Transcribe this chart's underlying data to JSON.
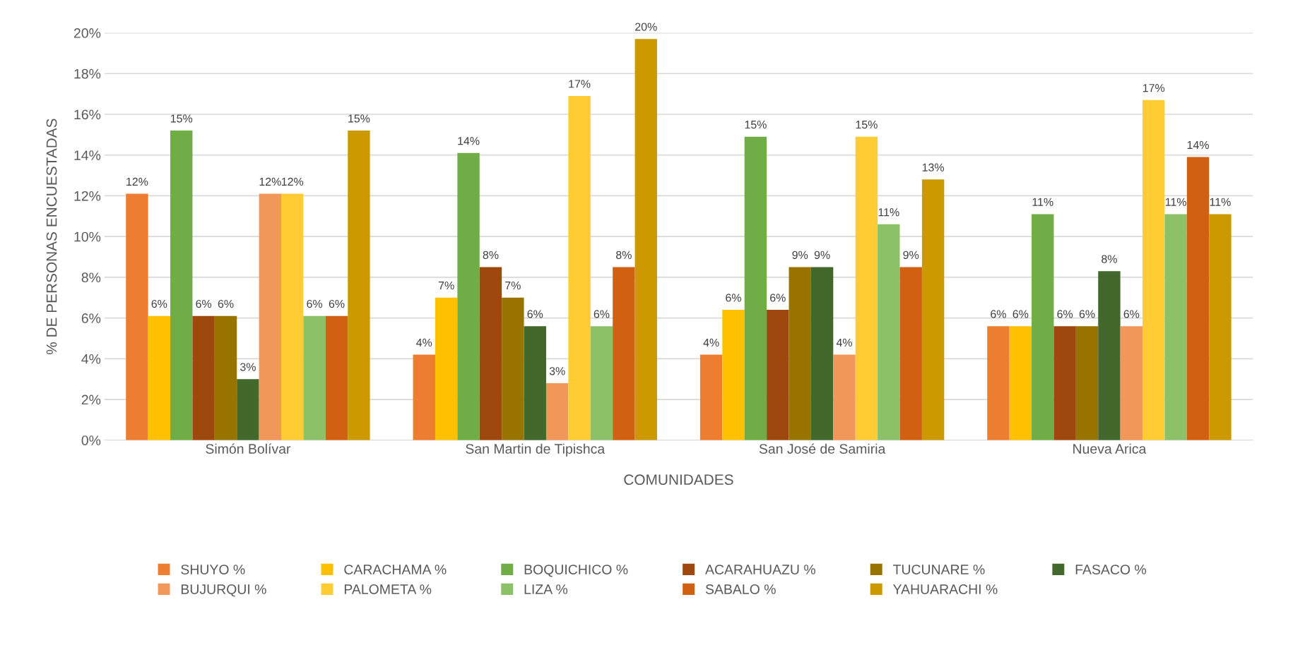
{
  "chart_data": {
    "type": "bar",
    "xlabel": "COMUNIDADES",
    "ylabel": "% DE PERSONAS ENCUESTADAS",
    "categories": [
      "Simón Bolívar",
      "San Martin de Tipishca",
      "San José de Samiria",
      "Nueva Arica"
    ],
    "series": [
      {
        "name": "SHUYO %",
        "color": "#ed7d31",
        "values": [
          12.1,
          4.2,
          4.2,
          5.6
        ],
        "value_labels": [
          "12%",
          "4%",
          "4%",
          "6%"
        ]
      },
      {
        "name": "CARACHAMA %",
        "color": "#ffc000",
        "values": [
          6.1,
          7.0,
          6.4,
          5.6
        ],
        "value_labels": [
          "6%",
          "7%",
          "6%",
          "6%"
        ]
      },
      {
        "name": "BOQUICHICO %",
        "color": "#70ad47",
        "values": [
          15.2,
          14.1,
          14.9,
          11.1
        ],
        "value_labels": [
          "15%",
          "14%",
          "15%",
          "11%"
        ]
      },
      {
        "name": "ACARAHUAZU %",
        "color": "#9e480e",
        "values": [
          6.1,
          8.5,
          6.4,
          5.6
        ],
        "value_labels": [
          "6%",
          "8%",
          "6%",
          "6%"
        ]
      },
      {
        "name": "TUCUNARE %",
        "color": "#997300",
        "values": [
          6.1,
          7.0,
          8.5,
          5.6
        ],
        "value_labels": [
          "6%",
          "7%",
          "9%",
          "6%"
        ]
      },
      {
        "name": "FASACO %",
        "color": "#43682b",
        "values": [
          3.0,
          5.6,
          8.5,
          8.3
        ],
        "value_labels": [
          "3%",
          "6%",
          "9%",
          "8%"
        ]
      },
      {
        "name": "BUJURQUI %",
        "color": "#f1975a",
        "values": [
          12.1,
          2.8,
          4.2,
          5.6
        ],
        "value_labels": [
          "12%",
          "3%",
          "4%",
          "6%"
        ]
      },
      {
        "name": "PALOMETA %",
        "color": "#ffcd33",
        "values": [
          12.1,
          16.9,
          14.9,
          16.7
        ],
        "value_labels": [
          "12%",
          "17%",
          "15%",
          "17%"
        ]
      },
      {
        "name": "LIZA %",
        "color": "#8cc168",
        "values": [
          6.1,
          5.6,
          10.6,
          11.1
        ],
        "value_labels": [
          "6%",
          "6%",
          "11%",
          "11%"
        ]
      },
      {
        "name": "SABALO %",
        "color": "#d26012",
        "values": [
          6.1,
          8.5,
          8.5,
          13.9
        ],
        "value_labels": [
          "6%",
          "8%",
          "9%",
          "14%"
        ]
      },
      {
        "name": "YAHUARACHI %",
        "color": "#cc9a00",
        "values": [
          15.2,
          19.7,
          12.8,
          11.1
        ],
        "value_labels": [
          "15%",
          "20%",
          "13%",
          "11%"
        ]
      }
    ],
    "ylim": [
      0,
      20
    ],
    "yticks": [
      {
        "value": 0,
        "label": "0%"
      },
      {
        "value": 2,
        "label": "2%"
      },
      {
        "value": 4,
        "label": "4%"
      },
      {
        "value": 6,
        "label": "6%"
      },
      {
        "value": 8,
        "label": "8%"
      },
      {
        "value": 10,
        "label": "10%"
      },
      {
        "value": 12,
        "label": "12%"
      },
      {
        "value": 14,
        "label": "14%"
      },
      {
        "value": 16,
        "label": "16%"
      },
      {
        "value": 18,
        "label": "18%"
      },
      {
        "value": 20,
        "label": "20%"
      }
    ],
    "grid": "y",
    "legend": "bottom"
  }
}
